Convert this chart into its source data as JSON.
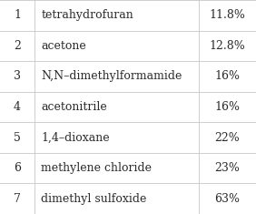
{
  "rows": [
    {
      "num": "1",
      "name": "tetrahydrofuran",
      "value": "11.8%"
    },
    {
      "num": "2",
      "name": "acetone",
      "value": "12.8%"
    },
    {
      "num": "3",
      "name": "N,N–dimethylformamide",
      "value": "16%"
    },
    {
      "num": "4",
      "name": "acetonitrile",
      "value": "16%"
    },
    {
      "num": "5",
      "name": "1,4–dioxane",
      "value": "22%"
    },
    {
      "num": "6",
      "name": "methylene chloride",
      "value": "23%"
    },
    {
      "num": "7",
      "name": "dimethyl sulfoxide",
      "value": "63%"
    }
  ],
  "background_color": "#ffffff",
  "line_color": "#c8c8c8",
  "text_color": "#2b2b2b",
  "font_size": 9.0,
  "col_sep1": 0.135,
  "col_sep2": 0.775
}
